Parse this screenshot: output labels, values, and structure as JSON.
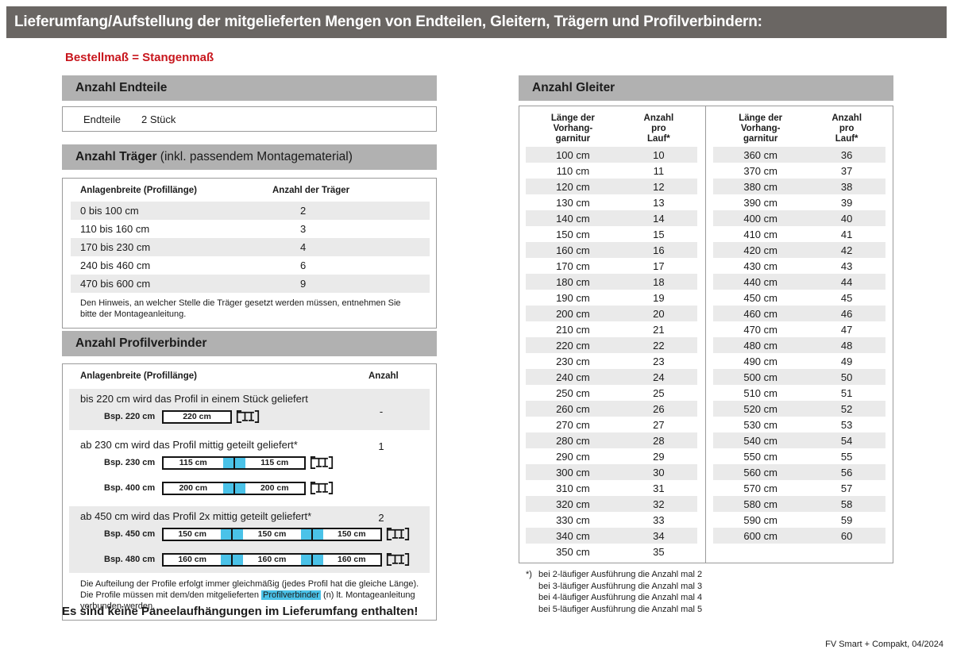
{
  "page": {
    "title": "Lieferumfang/Aufstellung der mitgelieferten Mengen von Endteilen, Gleitern, Trägern und Profilverbindern:",
    "subtitle": "Bestellmaß = Stangenmaß",
    "footer": "FV Smart + Compakt, 04/2024",
    "colors": {
      "title_bar": "#6a6663",
      "section_bar": "#b1b1b1",
      "row_stripe": "#eaeaea",
      "accent_blue": "#4ac2e8",
      "accent_red": "#c8161d"
    }
  },
  "endteile": {
    "header": "Anzahl Endteile",
    "label": "Endteile",
    "value": "2 Stück"
  },
  "traeger": {
    "header_bold": "Anzahl Träger",
    "header_rest": " (inkl. passendem Montagematerial)",
    "col1": "Anlagenbreite (Profillänge)",
    "col2": "Anzahl der Träger",
    "rows": [
      [
        "0 bis 100 cm",
        "2"
      ],
      [
        "110 bis 160 cm",
        "3"
      ],
      [
        "170 bis 230 cm",
        "4"
      ],
      [
        "240 bis 460 cm",
        "6"
      ],
      [
        "470 bis 600 cm",
        "9"
      ]
    ],
    "note": "Den Hinweis, an welcher Stelle die Träger gesetzt werden müssen, entnehmen Sie bitte der Montageanleitung."
  },
  "profilverbinder": {
    "header": "Anzahl Profilverbinder",
    "col1": "Anlagenbreite (Profillänge)",
    "col2": "Anzahl",
    "sections": [
      {
        "text": "bis 220 cm wird das Profil in einem Stück geliefert",
        "anzahl": "-",
        "shaded": true,
        "examples": [
          {
            "label": "Bsp. 220 cm",
            "segments": [
              "220 cm"
            ],
            "size": "s"
          }
        ]
      },
      {
        "text": "ab 230 cm wird das Profil mittig geteilt geliefert*",
        "anzahl": "1",
        "shaded": false,
        "examples": [
          {
            "label": "Bsp. 230 cm",
            "segments": [
              "115 cm",
              "115 cm"
            ],
            "size": "m"
          },
          {
            "label": "Bsp. 400 cm",
            "segments": [
              "200 cm",
              "200 cm"
            ],
            "size": "m"
          }
        ]
      },
      {
        "text": "ab 450 cm wird das Profil 2x mittig geteilt geliefert*",
        "anzahl": "2",
        "shaded": true,
        "examples": [
          {
            "label": "Bsp. 450 cm",
            "segments": [
              "150 cm",
              "150 cm",
              "150 cm"
            ],
            "size": "l"
          },
          {
            "label": "Bsp. 480 cm",
            "segments": [
              "160 cm",
              "160 cm",
              "160 cm"
            ],
            "size": "l"
          }
        ]
      }
    ],
    "note_part1": "Die Aufteilung der Profile erfolgt immer gleichmäßig (jedes Profil hat die gleiche Länge). Die Profile müssen mit dem/den mitgelieferten ",
    "note_highlight": "Profilverbinder",
    "note_part2": " (n) lt. Montageanleitung verbunden werden."
  },
  "paneel_note": "Es sind keine Paneelaufhängungen im Lieferumfang enthalten!",
  "gleiter": {
    "header": "Anzahl Gleiter",
    "col1": "Länge der\nVorhang-\ngarnitur",
    "col2": "Anzahl\npro\nLauf*",
    "left": [
      [
        "100 cm",
        "10"
      ],
      [
        "110 cm",
        "11"
      ],
      [
        "120 cm",
        "12"
      ],
      [
        "130 cm",
        "13"
      ],
      [
        "140 cm",
        "14"
      ],
      [
        "150 cm",
        "15"
      ],
      [
        "160 cm",
        "16"
      ],
      [
        "170 cm",
        "17"
      ],
      [
        "180 cm",
        "18"
      ],
      [
        "190 cm",
        "19"
      ],
      [
        "200 cm",
        "20"
      ],
      [
        "210 cm",
        "21"
      ],
      [
        "220 cm",
        "22"
      ],
      [
        "230 cm",
        "23"
      ],
      [
        "240 cm",
        "24"
      ],
      [
        "250 cm",
        "25"
      ],
      [
        "260 cm",
        "26"
      ],
      [
        "270 cm",
        "27"
      ],
      [
        "280 cm",
        "28"
      ],
      [
        "290 cm",
        "29"
      ],
      [
        "300 cm",
        "30"
      ],
      [
        "310 cm",
        "31"
      ],
      [
        "320 cm",
        "32"
      ],
      [
        "330 cm",
        "33"
      ],
      [
        "340 cm",
        "34"
      ],
      [
        "350 cm",
        "35"
      ]
    ],
    "right": [
      [
        "360 cm",
        "36"
      ],
      [
        "370 cm",
        "37"
      ],
      [
        "380 cm",
        "38"
      ],
      [
        "390 cm",
        "39"
      ],
      [
        "400 cm",
        "40"
      ],
      [
        "410 cm",
        "41"
      ],
      [
        "420 cm",
        "42"
      ],
      [
        "430 cm",
        "43"
      ],
      [
        "440 cm",
        "44"
      ],
      [
        "450 cm",
        "45"
      ],
      [
        "460 cm",
        "46"
      ],
      [
        "470 cm",
        "47"
      ],
      [
        "480 cm",
        "48"
      ],
      [
        "490 cm",
        "49"
      ],
      [
        "500 cm",
        "50"
      ],
      [
        "510 cm",
        "51"
      ],
      [
        "520 cm",
        "52"
      ],
      [
        "530 cm",
        "53"
      ],
      [
        "540 cm",
        "54"
      ],
      [
        "550 cm",
        "55"
      ],
      [
        "560 cm",
        "56"
      ],
      [
        "570 cm",
        "57"
      ],
      [
        "580 cm",
        "58"
      ],
      [
        "590 cm",
        "59"
      ],
      [
        "600 cm",
        "60"
      ]
    ]
  },
  "footnotes": {
    "marker": "*)",
    "lines": [
      "bei 2-läufiger Ausführung die Anzahl mal 2",
      "bei 3-läufiger Ausführung die Anzahl mal 3",
      "bei 4-läufiger Ausführung die Anzahl mal 4",
      "bei 5-läufiger Ausführung die Anzahl mal 5"
    ]
  }
}
